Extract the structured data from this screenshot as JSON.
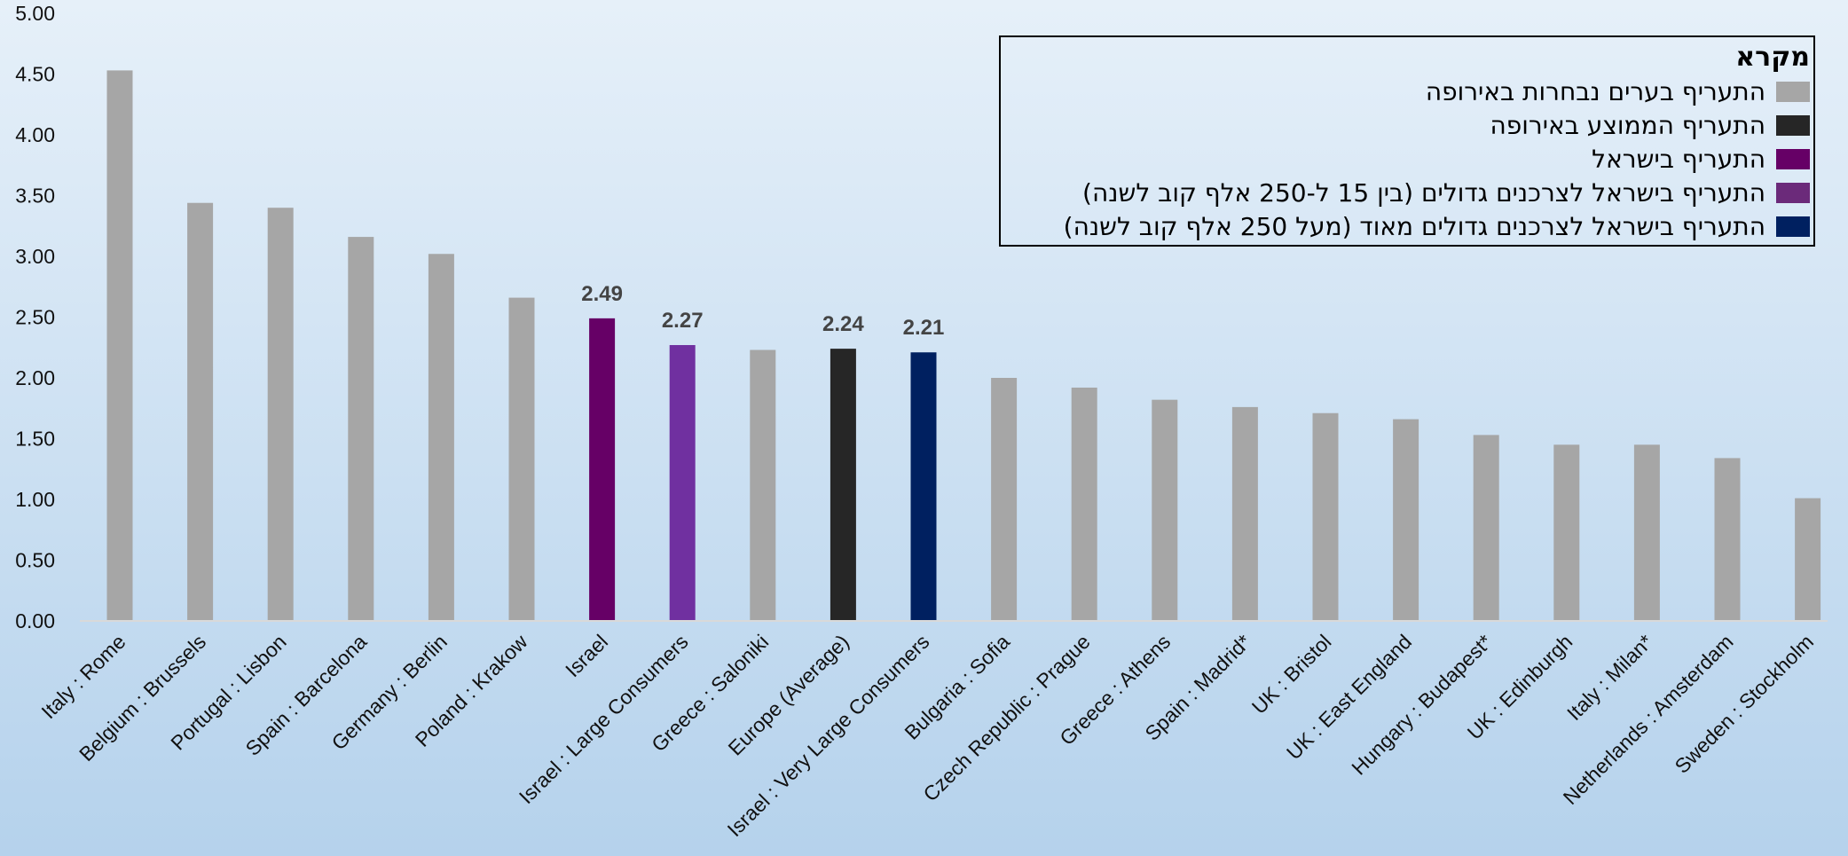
{
  "chart_data": {
    "type": "bar",
    "categories": [
      "Italy : Rome",
      "Belgium : Brussels",
      "Portugal : Lisbon",
      "Spain : Barcelona",
      "Germany : Berlin",
      "Poland : Krakow",
      "Israel",
      "Israel : Large Consumers",
      "Greece : Saloniki",
      "Europe (Average)",
      "Israel : Very Large Consumers",
      "Bulgaria : Sofia",
      "Czech Republic : Prague",
      "Greece : Athens",
      "Spain : Madrid*",
      "UK : Bristol",
      "UK : East England",
      "Hungary : Budapest*",
      "UK : Edinburgh",
      "Italy : Milan*",
      "Netherlands : Amsterdam",
      "Sweden : Stockholm"
    ],
    "values": [
      4.53,
      3.44,
      3.4,
      3.16,
      3.02,
      2.66,
      2.49,
      2.27,
      2.23,
      2.24,
      2.21,
      2.0,
      1.92,
      1.82,
      1.76,
      1.71,
      1.66,
      1.53,
      1.45,
      1.45,
      1.34,
      1.01
    ],
    "bar_groups": [
      "city",
      "city",
      "city",
      "city",
      "city",
      "city",
      "israel",
      "israel_large",
      "city",
      "europe_avg",
      "israel_very_large",
      "city",
      "city",
      "city",
      "city",
      "city",
      "city",
      "city",
      "city",
      "city",
      "city",
      "city"
    ],
    "data_labels": [
      "",
      "",
      "",
      "",
      "",
      "",
      "2.49",
      "2.27",
      "",
      "2.24",
      "2.21",
      "",
      "",
      "",
      "",
      "",
      "",
      "",
      "",
      "",
      "",
      ""
    ],
    "yticks": [
      "0.00",
      "0.50",
      "1.00",
      "1.50",
      "2.00",
      "2.50",
      "3.00",
      "3.50",
      "4.00",
      "4.50",
      "5.00"
    ],
    "ylim": [
      0,
      5
    ],
    "grid": false,
    "title": "",
    "xlabel": "",
    "ylabel": "",
    "colors": {
      "city": "#a6a6a6",
      "europe_avg": "#262626",
      "israel": "#660066",
      "israel_large": "#7030a0",
      "israel_very_large": "#002060"
    },
    "legend": {
      "placement": "top-right",
      "title": "מקרא",
      "items": [
        {
          "label": "התעריף בערים נבחרות באירופה",
          "color": "#a6a6a6"
        },
        {
          "label": "התעריף הממוצע באירופה",
          "color": "#262626"
        },
        {
          "label": "התעריף בישראל",
          "color": "#660066"
        },
        {
          "label": "התעריף בישראל לצרכנים גדולים (בין 15 ל-250 אלף קוב לשנה)",
          "color": "#6b2a7a"
        },
        {
          "label": "התעריף בישראל לצרכנים גדולים מאוד (מעל 250 אלף קוב לשנה)",
          "color": "#002060"
        }
      ]
    }
  }
}
